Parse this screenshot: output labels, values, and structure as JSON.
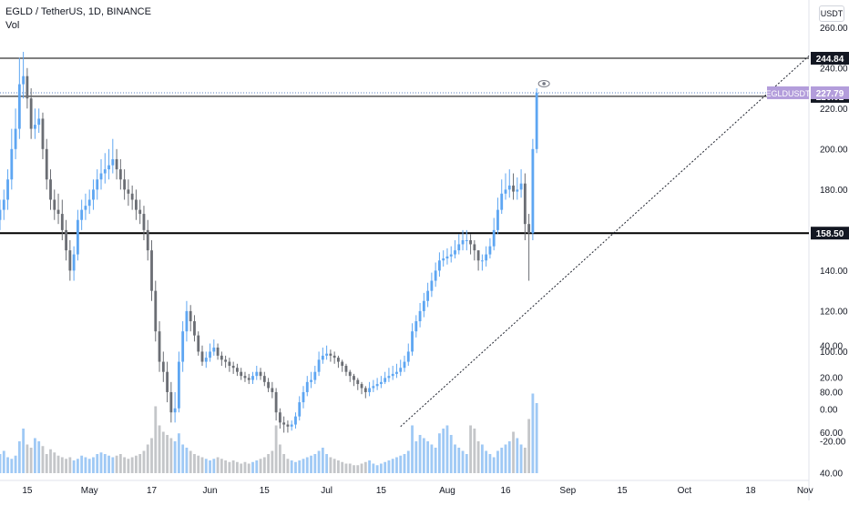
{
  "header": {
    "title": "EGLD / TetherUS, 1D, BINANCE",
    "indicator": "Vol"
  },
  "scale_unit": "USDT",
  "colors": {
    "up": "#5ea6f2",
    "down": "#6b6e74",
    "vol_up": "#9fc9f5",
    "vol_down": "#c4c6c9",
    "line_dark": "#000000",
    "symbol_tag": "#b39ddb",
    "grid_text": "#131722"
  },
  "chart_data": {
    "type": "candlestick",
    "title": "EGLD / TetherUS, 1D, BINANCE",
    "x_range": [
      "2021-04-08",
      "2021-11-02"
    ],
    "x_ticks": [
      {
        "date": "2021-04-15",
        "label": "15"
      },
      {
        "date": "2021-05-01",
        "label": "May"
      },
      {
        "date": "2021-05-17",
        "label": "17"
      },
      {
        "date": "2021-06-01",
        "label": "Jun"
      },
      {
        "date": "2021-06-15",
        "label": "15"
      },
      {
        "date": "2021-07-01",
        "label": "Jul"
      },
      {
        "date": "2021-07-15",
        "label": "15"
      },
      {
        "date": "2021-08-01",
        "label": "Aug"
      },
      {
        "date": "2021-08-16",
        "label": "16"
      },
      {
        "date": "2021-09-01",
        "label": "Sep"
      },
      {
        "date": "2021-09-15",
        "label": "15"
      },
      {
        "date": "2021-10-01",
        "label": "Oct"
      },
      {
        "date": "2021-10-18",
        "label": "18"
      },
      {
        "date": "2021-11-01",
        "label": "Nov"
      }
    ],
    "price_axis": {
      "range": [
        40,
        270
      ],
      "ticks": [
        "260.00",
        "240.00",
        "220.00",
        "200.00",
        "180.00",
        "160.00",
        "140.00",
        "120.00",
        "100.00",
        "80.00",
        "60.00",
        "40.00"
      ]
    },
    "volume_axis": {
      "range": [
        -40,
        40
      ],
      "ticks": [
        "40.00",
        "20.00",
        "0.00",
        "-20.00"
      ]
    },
    "start_date": "2021-04-08",
    "close": [
      170,
      175,
      185,
      200,
      210,
      232,
      236,
      225,
      210,
      212,
      215,
      200,
      185,
      175,
      170,
      168,
      160,
      150,
      140,
      148,
      165,
      170,
      172,
      175,
      180,
      185,
      188,
      190,
      192,
      195,
      190,
      185,
      180,
      178,
      175,
      170,
      168,
      160,
      150,
      130,
      110,
      95,
      90,
      80,
      70,
      72,
      95,
      110,
      120,
      115,
      108,
      100,
      95,
      97,
      100,
      102,
      98,
      96,
      95,
      93,
      92,
      90,
      88,
      87,
      86,
      88,
      90,
      88,
      85,
      82,
      80,
      70,
      65,
      64,
      63,
      64,
      68,
      75,
      80,
      85,
      86,
      90,
      96,
      98,
      99,
      98,
      97,
      95,
      93,
      90,
      88,
      86,
      84,
      82,
      80,
      82,
      83,
      84,
      85,
      87,
      88,
      89,
      90,
      92,
      95,
      100,
      110,
      115,
      120,
      125,
      130,
      135,
      140,
      145,
      146,
      147,
      148,
      150,
      153,
      155,
      155,
      153,
      150,
      145,
      145,
      148,
      152,
      160,
      170,
      178,
      180,
      182,
      179,
      180,
      183,
      163,
      158.5,
      200,
      227.79
    ],
    "open": [
      165,
      170,
      175,
      185,
      200,
      210,
      232,
      236,
      225,
      210,
      212,
      215,
      200,
      185,
      175,
      170,
      168,
      160,
      150,
      140,
      148,
      165,
      170,
      172,
      175,
      180,
      185,
      188,
      190,
      192,
      195,
      190,
      185,
      180,
      178,
      175,
      170,
      168,
      160,
      150,
      130,
      110,
      95,
      90,
      80,
      70,
      72,
      95,
      110,
      120,
      115,
      108,
      100,
      95,
      97,
      100,
      102,
      98,
      96,
      95,
      93,
      92,
      90,
      88,
      87,
      86,
      88,
      90,
      88,
      85,
      82,
      80,
      70,
      65,
      64,
      63,
      64,
      68,
      75,
      80,
      85,
      86,
      90,
      96,
      98,
      99,
      98,
      97,
      95,
      93,
      90,
      88,
      86,
      84,
      82,
      80,
      82,
      83,
      84,
      85,
      87,
      88,
      89,
      90,
      92,
      95,
      100,
      110,
      115,
      120,
      125,
      130,
      135,
      140,
      145,
      146,
      147,
      148,
      150,
      153,
      155,
      155,
      153,
      150,
      145,
      145,
      148,
      152,
      160,
      170,
      178,
      180,
      182,
      179,
      180,
      183,
      163,
      158.5,
      200
    ],
    "high": [
      175,
      180,
      190,
      210,
      220,
      245,
      248,
      240,
      230,
      220,
      220,
      218,
      205,
      190,
      180,
      178,
      175,
      165,
      155,
      152,
      170,
      175,
      178,
      180,
      185,
      190,
      195,
      198,
      200,
      205,
      200,
      195,
      190,
      185,
      182,
      180,
      175,
      172,
      165,
      155,
      135,
      115,
      100,
      95,
      85,
      80,
      100,
      115,
      125,
      123,
      118,
      110,
      103,
      100,
      104,
      106,
      104,
      100,
      98,
      97,
      95,
      94,
      92,
      90,
      89,
      90,
      93,
      92,
      90,
      87,
      85,
      82,
      72,
      68,
      66,
      66,
      70,
      78,
      83,
      88,
      90,
      93,
      100,
      102,
      103,
      101,
      100,
      98,
      96,
      94,
      91,
      89,
      87,
      85,
      83,
      85,
      86,
      87,
      88,
      90,
      92,
      93,
      94,
      96,
      98,
      104,
      114,
      118,
      124,
      129,
      134,
      139,
      144,
      149,
      150,
      151,
      152,
      155,
      158,
      160,
      160,
      158,
      155,
      150,
      148,
      152,
      156,
      166,
      176,
      185,
      188,
      190,
      188,
      186,
      190,
      188,
      168,
      205,
      230
    ],
    "low": [
      160,
      165,
      170,
      180,
      195,
      205,
      225,
      220,
      205,
      205,
      208,
      195,
      180,
      170,
      165,
      163,
      155,
      145,
      135,
      135,
      145,
      160,
      165,
      168,
      170,
      175,
      180,
      183,
      185,
      188,
      185,
      180,
      175,
      172,
      170,
      165,
      163,
      155,
      145,
      125,
      105,
      90,
      85,
      75,
      65,
      65,
      70,
      90,
      105,
      110,
      105,
      98,
      93,
      92,
      95,
      98,
      96,
      93,
      92,
      90,
      89,
      88,
      86,
      85,
      84,
      84,
      86,
      86,
      83,
      80,
      77,
      66,
      62,
      60,
      60,
      61,
      62,
      66,
      72,
      78,
      82,
      84,
      88,
      94,
      96,
      95,
      94,
      92,
      90,
      88,
      85,
      83,
      81,
      79,
      77,
      78,
      80,
      81,
      82,
      84,
      85,
      86,
      87,
      88,
      90,
      93,
      98,
      107,
      112,
      117,
      122,
      127,
      132,
      137,
      142,
      143,
      144,
      146,
      148,
      150,
      150,
      148,
      145,
      140,
      140,
      142,
      146,
      150,
      158,
      168,
      175,
      176,
      175,
      175,
      176,
      155,
      135,
      155,
      198
    ],
    "volume": [
      12,
      14,
      10,
      9,
      11,
      20,
      28,
      18,
      16,
      22,
      20,
      17,
      12,
      15,
      13,
      11,
      10,
      9,
      10,
      8,
      9,
      11,
      10,
      9,
      10,
      12,
      13,
      12,
      11,
      10,
      11,
      12,
      10,
      9,
      10,
      11,
      12,
      14,
      18,
      22,
      42,
      30,
      26,
      24,
      22,
      20,
      25,
      18,
      16,
      14,
      12,
      11,
      10,
      9,
      8,
      9,
      10,
      9,
      8,
      7,
      8,
      7,
      6,
      7,
      6,
      7,
      8,
      9,
      10,
      12,
      14,
      30,
      18,
      12,
      9,
      8,
      7,
      8,
      9,
      10,
      11,
      12,
      14,
      16,
      12,
      10,
      9,
      8,
      7,
      6,
      6,
      5,
      5,
      6,
      7,
      8,
      6,
      5,
      6,
      7,
      8,
      9,
      10,
      11,
      12,
      14,
      30,
      20,
      24,
      22,
      20,
      18,
      16,
      25,
      28,
      30,
      24,
      18,
      16,
      14,
      12,
      30,
      28,
      20,
      18,
      14,
      12,
      10,
      14,
      16,
      18,
      20,
      26,
      22,
      18,
      16,
      34,
      50,
      44
    ],
    "key_levels": [
      {
        "price": 244.84,
        "label": "244.84",
        "style": "solid"
      },
      {
        "price": 226.02,
        "label": "226.02",
        "style": "solid"
      },
      {
        "price": 158.5,
        "label": "158.50",
        "style": "solid-bold"
      }
    ],
    "last_price": {
      "price": 227.79,
      "label": "227.79",
      "symbol": "EGLDUSDT"
    },
    "trendline": {
      "from": {
        "date": "2021-07-20",
        "price": 63
      },
      "to": {
        "date": "2021-11-02",
        "price": 246
      }
    }
  }
}
